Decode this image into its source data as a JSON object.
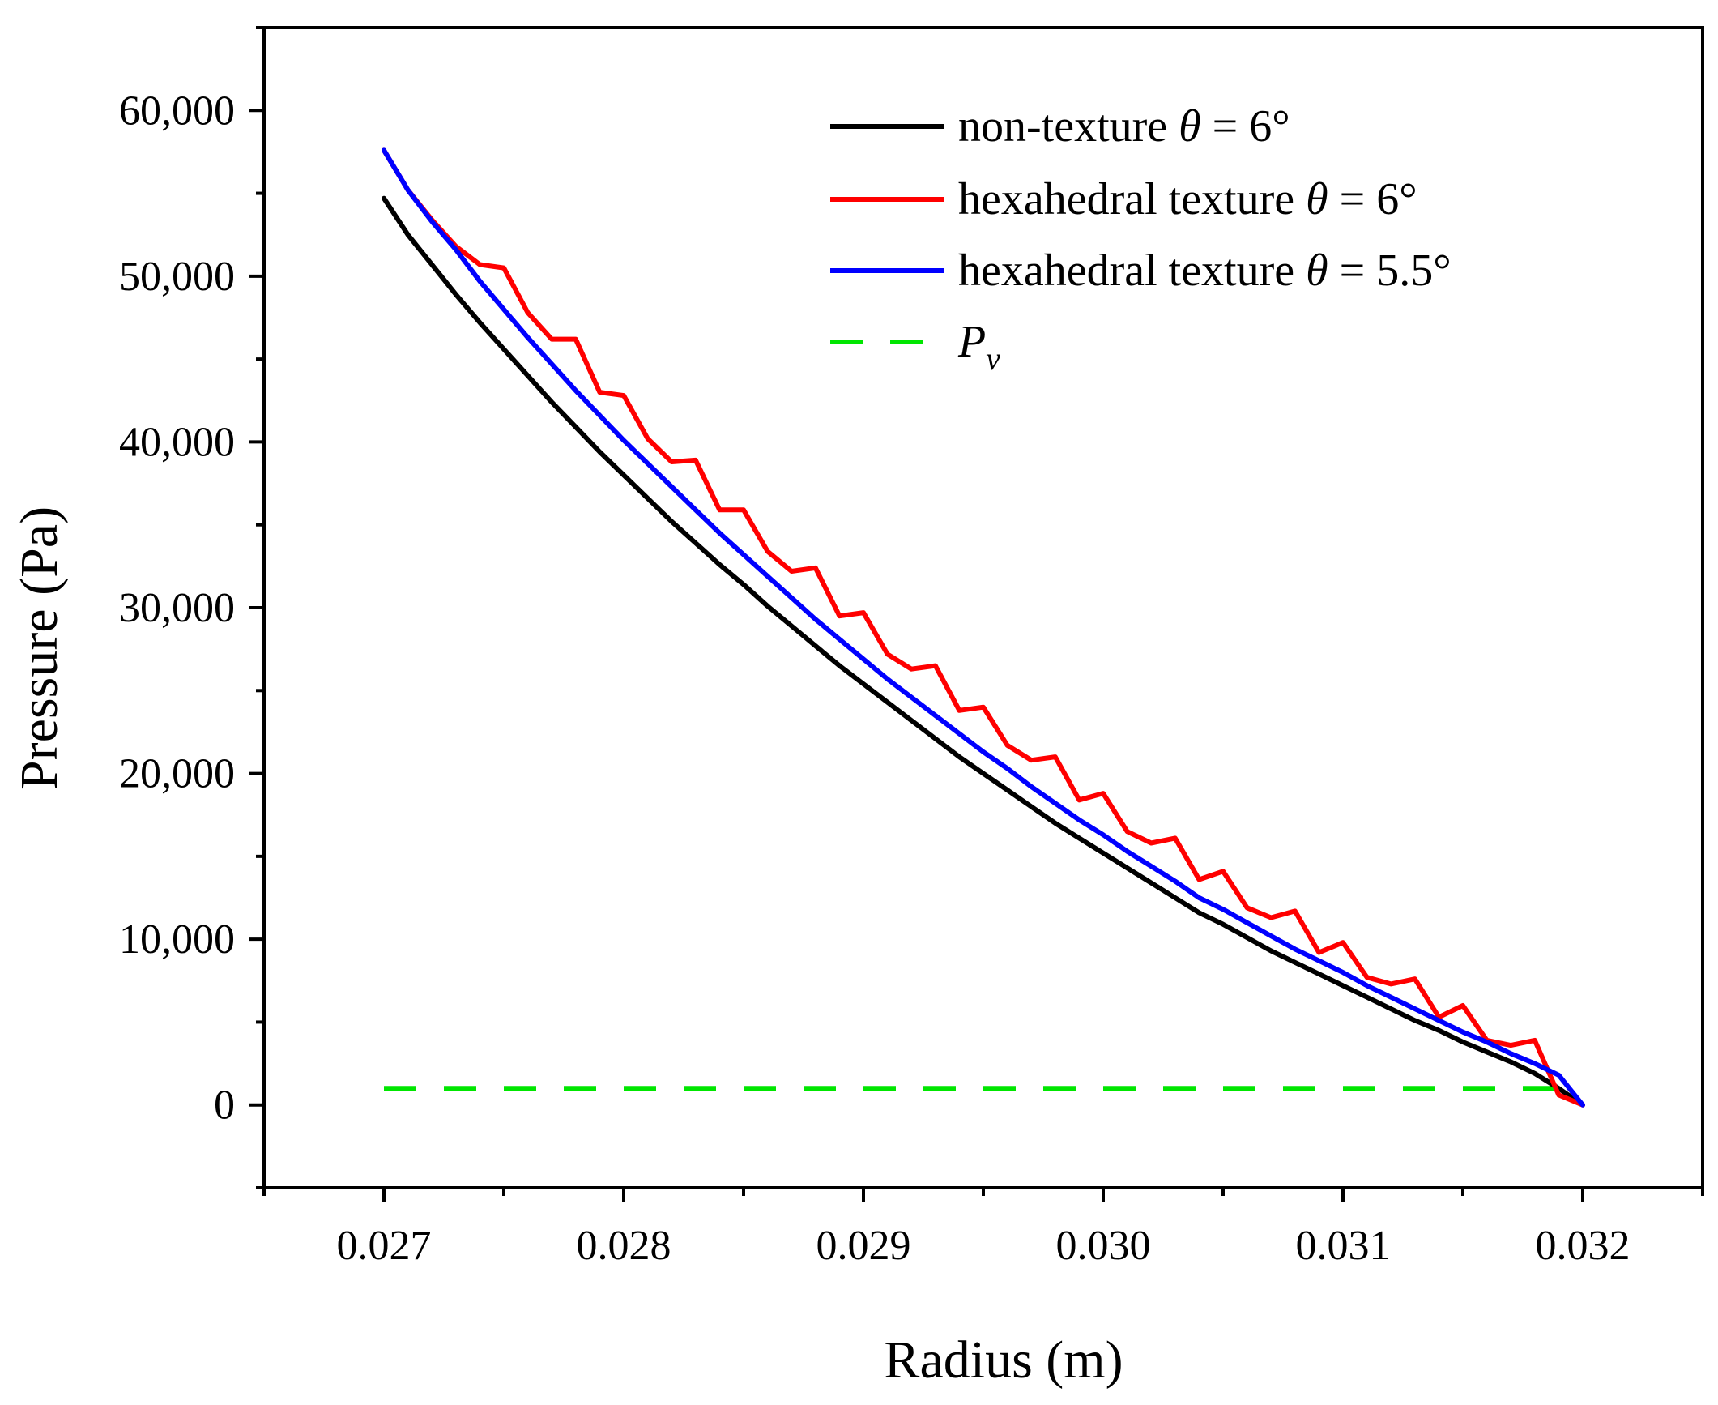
{
  "chart_data": {
    "type": "line",
    "title": "",
    "xlabel": "Radius (m)",
    "ylabel": "Pressure (Pa)",
    "xlim": [
      0.0265,
      0.0325
    ],
    "ylim": [
      -5000,
      65000
    ],
    "xticks": [
      0.027,
      0.028,
      0.029,
      0.03,
      0.031,
      0.032
    ],
    "xtick_labels": [
      "0.027",
      "0.028",
      "0.029",
      "0.030",
      "0.031",
      "0.032"
    ],
    "yticks": [
      0,
      10000,
      20000,
      30000,
      40000,
      50000,
      60000
    ],
    "ytick_labels": [
      "0",
      "10,000",
      "20,000",
      "30,000",
      "40,000",
      "50,000",
      "60,000"
    ],
    "grid": false,
    "legend_position": "top-right",
    "series": [
      {
        "name": "non-texture θ = 6°",
        "legend_main": "non-texture ",
        "legend_symbol": "θ",
        "legend_tail": " = 6°",
        "color": "#000000",
        "style": "solid",
        "x": [
          0.027,
          0.0271,
          0.0272,
          0.0273,
          0.0274,
          0.0275,
          0.0276,
          0.0277,
          0.0278,
          0.0279,
          0.028,
          0.0281,
          0.0282,
          0.0283,
          0.0284,
          0.0285,
          0.0286,
          0.0287,
          0.0288,
          0.0289,
          0.029,
          0.0291,
          0.0292,
          0.0293,
          0.0294,
          0.0295,
          0.0296,
          0.0297,
          0.0298,
          0.0299,
          0.03,
          0.0301,
          0.0302,
          0.0303,
          0.0304,
          0.0305,
          0.0306,
          0.0307,
          0.0308,
          0.0309,
          0.031,
          0.0311,
          0.0312,
          0.0313,
          0.0314,
          0.0315,
          0.0316,
          0.0317,
          0.0318,
          0.0319,
          0.032
        ],
        "y": [
          54700,
          52500,
          50700,
          48900,
          47200,
          45600,
          44000,
          42400,
          40900,
          39400,
          38000,
          36600,
          35200,
          33900,
          32600,
          31400,
          30100,
          28900,
          27700,
          26500,
          25400,
          24300,
          23200,
          22100,
          21000,
          20000,
          19000,
          18000,
          17000,
          16100,
          15200,
          14300,
          13400,
          12500,
          11600,
          10900,
          10100,
          9300,
          8600,
          7900,
          7200,
          6500,
          5800,
          5100,
          4500,
          3800,
          3200,
          2600,
          1900,
          1000,
          0
        ]
      },
      {
        "name": "hexahedral texture θ = 6°",
        "legend_main": "hexahedral texture ",
        "legend_symbol": "θ",
        "legend_tail": " = 6°",
        "color": "#ff0000",
        "style": "solid",
        "x": [
          0.027,
          0.0271,
          0.0272,
          0.0273,
          0.0274,
          0.0275,
          0.0276,
          0.0277,
          0.0278,
          0.0279,
          0.028,
          0.0281,
          0.0282,
          0.0283,
          0.0284,
          0.0285,
          0.0286,
          0.0287,
          0.0288,
          0.0289,
          0.029,
          0.0291,
          0.0292,
          0.0293,
          0.0294,
          0.0295,
          0.0296,
          0.0297,
          0.0298,
          0.0299,
          0.03,
          0.0301,
          0.0302,
          0.0303,
          0.0304,
          0.0305,
          0.0306,
          0.0307,
          0.0308,
          0.0309,
          0.031,
          0.0311,
          0.0312,
          0.0313,
          0.0314,
          0.0315,
          0.0316,
          0.0317,
          0.0318,
          0.0319,
          0.032
        ],
        "y": [
          57600,
          55200,
          53400,
          51800,
          50700,
          50500,
          47800,
          46200,
          46200,
          43000,
          42800,
          40200,
          38800,
          38900,
          35900,
          35900,
          33400,
          32200,
          32400,
          29500,
          29700,
          27200,
          26300,
          26500,
          23800,
          24000,
          21700,
          20800,
          21000,
          18400,
          18800,
          16500,
          15800,
          16100,
          13600,
          14100,
          11900,
          11300,
          11700,
          9200,
          9800,
          7700,
          7300,
          7600,
          5300,
          6000,
          3900,
          3600,
          3900,
          600,
          0
        ]
      },
      {
        "name": "hexahedral texture θ = 5.5°",
        "legend_main": "hexahedral texture ",
        "legend_symbol": "θ",
        "legend_tail": " = 5.5°",
        "color": "#0000ff",
        "style": "solid",
        "x": [
          0.027,
          0.0271,
          0.0272,
          0.0273,
          0.0274,
          0.0275,
          0.0276,
          0.0277,
          0.0278,
          0.0279,
          0.028,
          0.0281,
          0.0282,
          0.0283,
          0.0284,
          0.0285,
          0.0286,
          0.0287,
          0.0288,
          0.0289,
          0.029,
          0.0291,
          0.0292,
          0.0293,
          0.0294,
          0.0295,
          0.0296,
          0.0297,
          0.0298,
          0.0299,
          0.03,
          0.0301,
          0.0302,
          0.0303,
          0.0304,
          0.0305,
          0.0306,
          0.0307,
          0.0308,
          0.0309,
          0.031,
          0.0311,
          0.0312,
          0.0313,
          0.0314,
          0.0315,
          0.0316,
          0.0317,
          0.0318,
          0.0319,
          0.032
        ],
        "y": [
          57600,
          55200,
          53300,
          51600,
          49700,
          48000,
          46300,
          44700,
          43100,
          41600,
          40100,
          38700,
          37300,
          35900,
          34500,
          33200,
          31900,
          30600,
          29300,
          28100,
          26900,
          25700,
          24600,
          23500,
          22400,
          21300,
          20300,
          19200,
          18200,
          17200,
          16300,
          15300,
          14400,
          13500,
          12500,
          11800,
          11000,
          10200,
          9400,
          8700,
          8000,
          7200,
          6500,
          5800,
          5100,
          4400,
          3800,
          3100,
          2500,
          1800,
          0
        ]
      },
      {
        "name": "Pv",
        "legend_main": "P",
        "legend_sub": "v",
        "color": "#00e600",
        "style": "dashed",
        "x": [
          0.027,
          0.032
        ],
        "y": [
          1000,
          1000
        ]
      }
    ]
  }
}
